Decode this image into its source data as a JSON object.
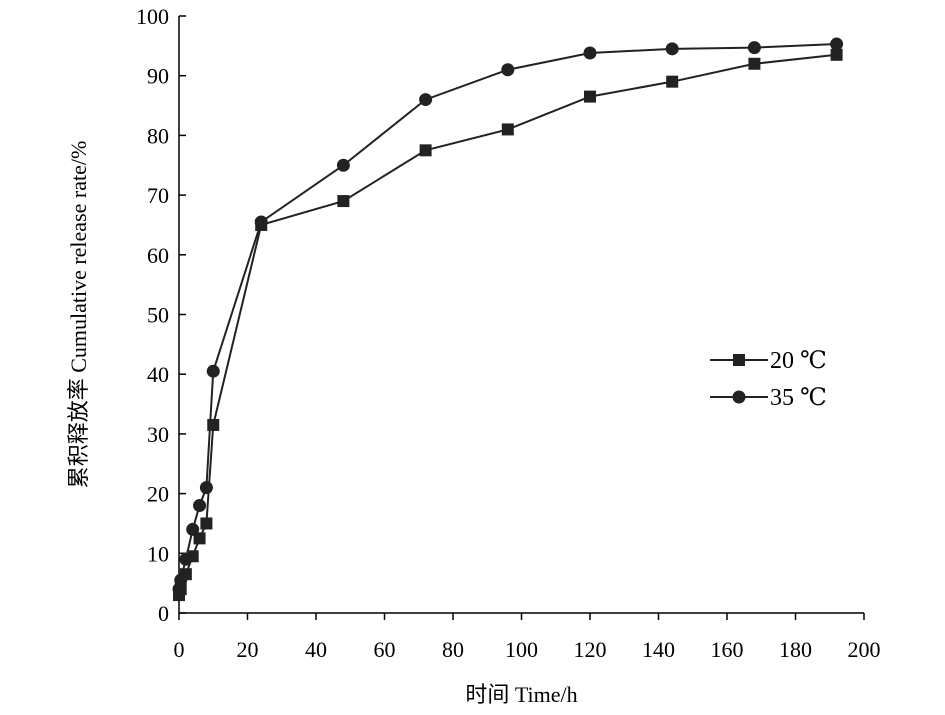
{
  "chart_data": {
    "type": "line",
    "xlabel": "时间 Time/h",
    "ylabel": "累积释放率 Cumulative release rate/%",
    "xlim": [
      0,
      200
    ],
    "ylim": [
      0,
      100
    ],
    "xticks": [
      "0",
      "20",
      "40",
      "60",
      "80",
      "100",
      "120",
      "140",
      "160",
      "180",
      "200"
    ],
    "yticks": [
      "0",
      "10",
      "20",
      "30",
      "40",
      "50",
      "60",
      "70",
      "80",
      "90",
      "100"
    ],
    "grid": false,
    "legend": "right-middle",
    "series": [
      {
        "name": "20 ℃",
        "marker": "square",
        "color": "#222222",
        "points": [
          [
            0,
            3
          ],
          [
            0.5,
            4
          ],
          [
            2,
            6.5
          ],
          [
            4,
            9.5
          ],
          [
            6,
            12.5
          ],
          [
            8,
            15
          ],
          [
            10,
            31.5
          ],
          [
            24,
            65
          ],
          [
            48,
            69
          ],
          [
            72,
            77.5
          ],
          [
            96,
            81
          ],
          [
            120,
            86.5
          ],
          [
            144,
            89
          ],
          [
            168,
            92
          ],
          [
            192,
            93.5
          ]
        ]
      },
      {
        "name": "35 ℃",
        "marker": "circle",
        "color": "#222222",
        "points": [
          [
            0,
            4
          ],
          [
            0.5,
            5.5
          ],
          [
            2,
            9
          ],
          [
            4,
            14
          ],
          [
            6,
            18
          ],
          [
            8,
            21
          ],
          [
            10,
            40.5
          ],
          [
            24,
            65.5
          ],
          [
            48,
            75
          ],
          [
            72,
            86
          ],
          [
            96,
            91
          ],
          [
            120,
            93.8
          ],
          [
            144,
            94.5
          ],
          [
            168,
            94.7
          ],
          [
            192,
            95.3
          ]
        ]
      }
    ]
  }
}
